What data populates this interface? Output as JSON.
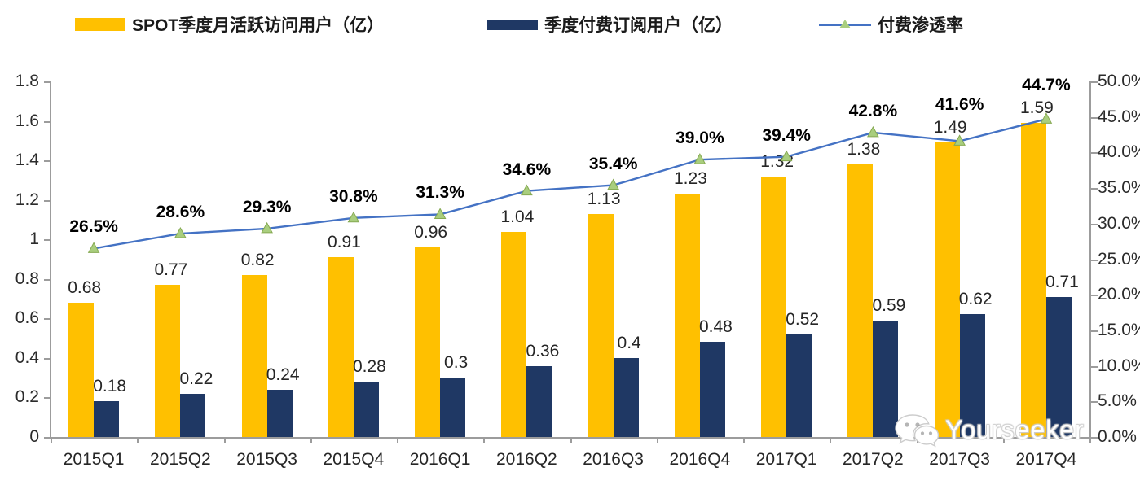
{
  "legend": [
    {
      "label": "SPOT季度月活跃访问用户（亿）",
      "color": "#FFC000",
      "type": "bar"
    },
    {
      "label": "季度付费订阅用户（亿）",
      "color": "#1F3864",
      "type": "bar"
    },
    {
      "label": "付费渗透率",
      "color": "#4472C4",
      "marker_color": "#A9CE7E",
      "type": "line"
    }
  ],
  "chart_data": {
    "type": "bar+line combo",
    "categories": [
      "2015Q1",
      "2015Q2",
      "2015Q3",
      "2015Q4",
      "2016Q1",
      "2016Q2",
      "2016Q3",
      "2016Q4",
      "2017Q1",
      "2017Q2",
      "2017Q3",
      "2017Q4"
    ],
    "series": [
      {
        "name": "SPOT季度月活跃访问用户（亿）",
        "type": "bar",
        "axis": "left",
        "color": "#FFC000",
        "values": [
          0.68,
          0.77,
          0.82,
          0.91,
          0.96,
          1.04,
          1.13,
          1.23,
          1.32,
          1.38,
          1.49,
          1.59
        ],
        "labels": [
          "0.68",
          "0.77",
          "0.82",
          "0.91",
          "0.96",
          "1.04",
          "1.13",
          "1.23",
          "1.32",
          "1.38",
          "1.49",
          "1.59"
        ]
      },
      {
        "name": "季度付费订阅用户（亿）",
        "type": "bar",
        "axis": "left",
        "color": "#1F3864",
        "values": [
          0.18,
          0.22,
          0.24,
          0.28,
          0.3,
          0.36,
          0.4,
          0.48,
          0.52,
          0.59,
          0.62,
          0.71
        ],
        "labels": [
          "0.18",
          "0.22",
          "0.24",
          "0.28",
          "0.3",
          "0.36",
          "0.4",
          "0.48",
          "0.52",
          "0.59",
          "0.62",
          "0.71"
        ]
      },
      {
        "name": "付费渗透率",
        "type": "line",
        "axis": "right",
        "color": "#4472C4",
        "marker": "triangle",
        "marker_color": "#A9CE7E",
        "marker_edge": "#86A952",
        "values": [
          26.5,
          28.6,
          29.3,
          30.8,
          31.3,
          34.6,
          35.4,
          39.0,
          39.4,
          42.8,
          41.6,
          44.7
        ],
        "labels": [
          "26.5%",
          "28.6%",
          "29.3%",
          "30.8%",
          "31.3%",
          "34.6%",
          "35.4%",
          "39.0%",
          "39.4%",
          "42.8%",
          "41.6%",
          "44.7%"
        ]
      }
    ],
    "left_axis": {
      "min": 0,
      "max": 1.8,
      "step": 0.2,
      "labels": [
        "1.8",
        "1.6",
        "1.4",
        "1.2",
        "1",
        "0.8",
        "0.6",
        "0.4",
        "0.2",
        "0"
      ]
    },
    "right_axis": {
      "min": 0,
      "max": 50,
      "step": 5,
      "labels": [
        "50.0%",
        "45.0%",
        "40.0%",
        "35.0%",
        "30.0%",
        "25.0%",
        "20.0%",
        "15.0%",
        "10.0%",
        "5.0%",
        "0.0%"
      ]
    },
    "grid": "off",
    "legend_position": "top"
  },
  "watermark": {
    "text": "Yourseeker",
    "icon": "wechat-icon"
  }
}
